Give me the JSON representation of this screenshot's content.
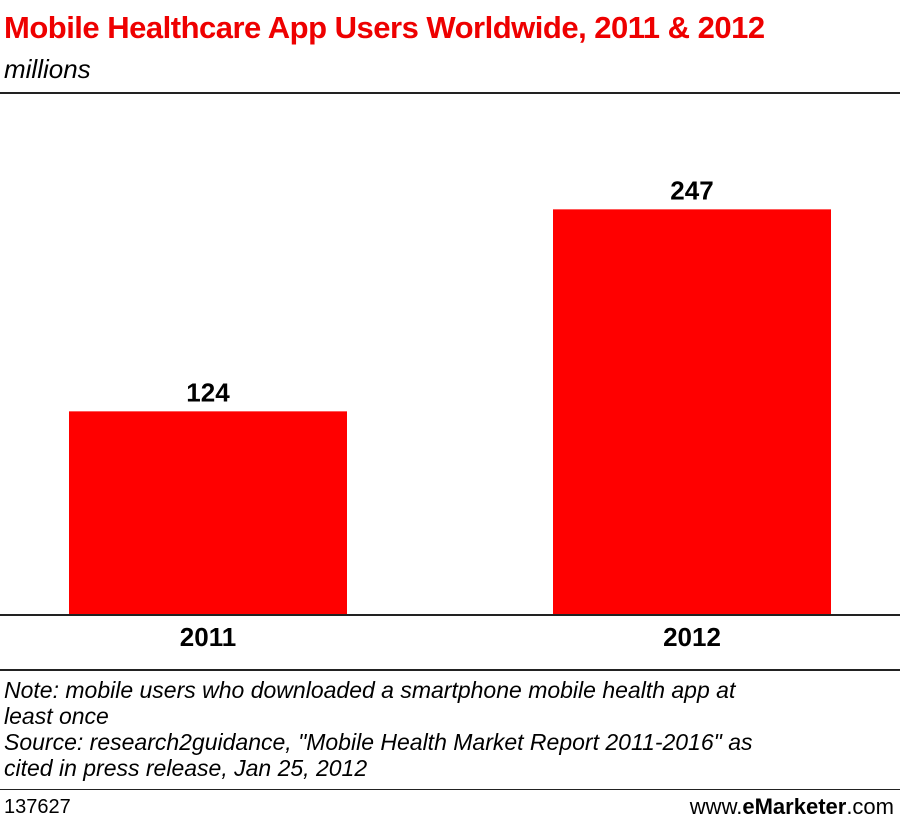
{
  "header": {
    "title": "Mobile Healthcare App Users Worldwide, 2011 & 2012",
    "subtitle": "millions"
  },
  "chart_data": {
    "type": "bar",
    "title": "Mobile Healthcare App Users Worldwide, 2011 & 2012",
    "subtitle": "millions",
    "categories": [
      "2011",
      "2012"
    ],
    "values": [
      124,
      247
    ],
    "ylim": [
      0,
      300
    ],
    "grid": false,
    "legend": "none",
    "bar_color": "#ff0000"
  },
  "notes": {
    "note_line1": "Note: mobile users who downloaded a smartphone mobile health app at",
    "note_line2": "least once",
    "source_line1": "Source: research2guidance, \"Mobile Health Market Report 2011-2016\" as",
    "source_line2": "cited in press release, Jan 25, 2012"
  },
  "footer": {
    "chart_id": "137627",
    "brand_prefix": "www.",
    "brand_bold": "eMarketer",
    "brand_suffix": ".com"
  }
}
